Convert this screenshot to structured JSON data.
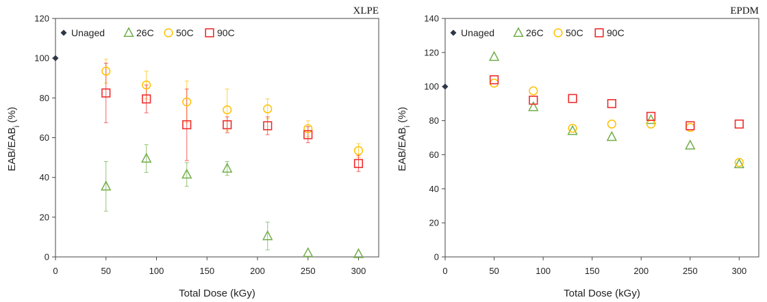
{
  "chart_data": [
    {
      "type": "scatter",
      "title": "XLPE",
      "xlabel": "Total Dose (kGy)",
      "ylabel_main": "EAB/EAB",
      "ylabel_sub": "i",
      "ylabel_unit": " (%)",
      "xlim": [
        0,
        320
      ],
      "ylim": [
        0,
        120
      ],
      "xticks": [
        0,
        50,
        100,
        150,
        200,
        250,
        300
      ],
      "yticks": [
        0,
        20,
        40,
        60,
        80,
        100,
        120
      ],
      "legend": "top-left",
      "series": [
        {
          "name": "Unaged",
          "marker": "diamond",
          "color": "#2d3748",
          "points": [
            {
              "x": 0,
              "y": 100
            }
          ]
        },
        {
          "name": "26C",
          "marker": "triangle",
          "color": "#70ad47",
          "points": [
            {
              "x": 50,
              "y": 35.5,
              "err": 12.5
            },
            {
              "x": 90,
              "y": 49.5,
              "err": 7
            },
            {
              "x": 130,
              "y": 41.5,
              "err": 6
            },
            {
              "x": 170,
              "y": 44.5,
              "err": 3.5
            },
            {
              "x": 210,
              "y": 10.5,
              "err": 7
            },
            {
              "x": 250,
              "y": 2,
              "err": 0
            },
            {
              "x": 300,
              "y": 1.5,
              "err": 0
            }
          ]
        },
        {
          "name": "50C",
          "marker": "circle",
          "color": "#ffc000",
          "points": [
            {
              "x": 50,
              "y": 93.5,
              "err": 6
            },
            {
              "x": 90,
              "y": 86.5,
              "err": 7
            },
            {
              "x": 130,
              "y": 78,
              "err": 10.5
            },
            {
              "x": 170,
              "y": 74,
              "err": 10.5
            },
            {
              "x": 210,
              "y": 74.5,
              "err": 5
            },
            {
              "x": 250,
              "y": 64.5,
              "err": 4
            },
            {
              "x": 300,
              "y": 53.5,
              "err": 3.5
            }
          ]
        },
        {
          "name": "90C",
          "marker": "square",
          "color": "#ee2b2b",
          "points": [
            {
              "x": 50,
              "y": 82.5,
              "err": 15
            },
            {
              "x": 90,
              "y": 79.5,
              "err": 7
            },
            {
              "x": 130,
              "y": 66.5,
              "err": 18
            },
            {
              "x": 170,
              "y": 66.5,
              "err": 4
            },
            {
              "x": 210,
              "y": 66,
              "err": 4.5
            },
            {
              "x": 250,
              "y": 61.5,
              "err": 4
            },
            {
              "x": 300,
              "y": 47,
              "err": 4
            }
          ]
        }
      ]
    },
    {
      "type": "scatter",
      "title": "EPDM",
      "xlabel": "Total Dose (kGy)",
      "ylabel_main": "EAB/EAB",
      "ylabel_sub": "i",
      "ylabel_unit": " (%)",
      "xlim": [
        0,
        320
      ],
      "ylim": [
        0,
        140
      ],
      "xticks": [
        0,
        50,
        100,
        150,
        200,
        250,
        300
      ],
      "yticks": [
        0,
        20,
        40,
        60,
        80,
        100,
        120,
        140
      ],
      "legend": "top-left",
      "series": [
        {
          "name": "Unaged",
          "marker": "diamond",
          "color": "#2d3748",
          "points": [
            {
              "x": 0,
              "y": 100
            }
          ]
        },
        {
          "name": "26C",
          "marker": "triangle",
          "color": "#70ad47",
          "points": [
            {
              "x": 50,
              "y": 117.5
            },
            {
              "x": 90,
              "y": 88
            },
            {
              "x": 130,
              "y": 74
            },
            {
              "x": 170,
              "y": 70.5
            },
            {
              "x": 210,
              "y": 80.5
            },
            {
              "x": 250,
              "y": 65.5
            },
            {
              "x": 300,
              "y": 54.5
            }
          ]
        },
        {
          "name": "50C",
          "marker": "circle",
          "color": "#ffc000",
          "points": [
            {
              "x": 50,
              "y": 102
            },
            {
              "x": 90,
              "y": 97.5
            },
            {
              "x": 130,
              "y": 75.5
            },
            {
              "x": 170,
              "y": 78
            },
            {
              "x": 210,
              "y": 78
            },
            {
              "x": 250,
              "y": 76
            },
            {
              "x": 300,
              "y": 55.5
            }
          ]
        },
        {
          "name": "90C",
          "marker": "square",
          "color": "#ee2b2b",
          "points": [
            {
              "x": 50,
              "y": 104
            },
            {
              "x": 90,
              "y": 92
            },
            {
              "x": 130,
              "y": 93
            },
            {
              "x": 170,
              "y": 90
            },
            {
              "x": 210,
              "y": 82.5
            },
            {
              "x": 250,
              "y": 77
            },
            {
              "x": 300,
              "y": 78
            }
          ]
        }
      ]
    }
  ]
}
